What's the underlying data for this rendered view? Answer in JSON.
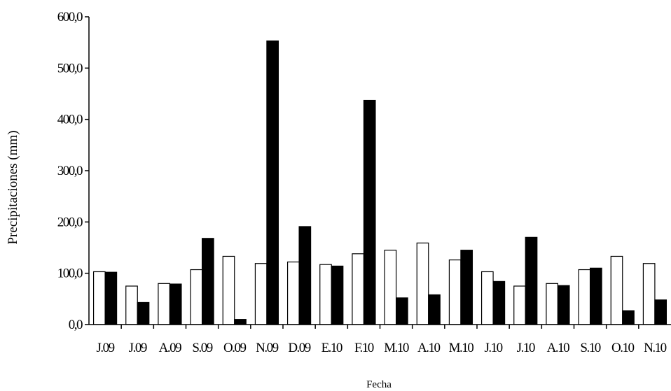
{
  "chart_data": {
    "type": "bar",
    "title": "",
    "xlabel": "Fecha",
    "ylabel": "Precipitaciones (mm)",
    "ylim": [
      0,
      600
    ],
    "y_ticks": [
      "0,0",
      "100,0",
      "200,0",
      "300,0",
      "400,0",
      "500,0",
      "600,0"
    ],
    "categories": [
      "J.09",
      "J.09",
      "A.09",
      "S.09",
      "O.09",
      "N.09",
      "D.09",
      "E.10",
      "F.10",
      "M.10",
      "A.10",
      "M.10",
      "J.10",
      "J.10",
      "A.10",
      "S.10",
      "O.10",
      "N.10"
    ],
    "series": [
      {
        "fill": "#ffffff",
        "stroke": "#000000",
        "values": [
          103,
          75,
          80,
          107,
          133,
          119,
          122,
          117,
          138,
          145,
          159,
          126,
          103,
          75,
          80,
          107,
          133,
          119
        ]
      },
      {
        "fill": "#000000",
        "stroke": "#000000",
        "values": [
          102,
          43,
          79,
          168,
          10,
          553,
          191,
          114,
          437,
          52,
          58,
          145,
          84,
          170,
          76,
          110,
          27,
          48
        ]
      }
    ],
    "legend": "none",
    "grid": false
  }
}
